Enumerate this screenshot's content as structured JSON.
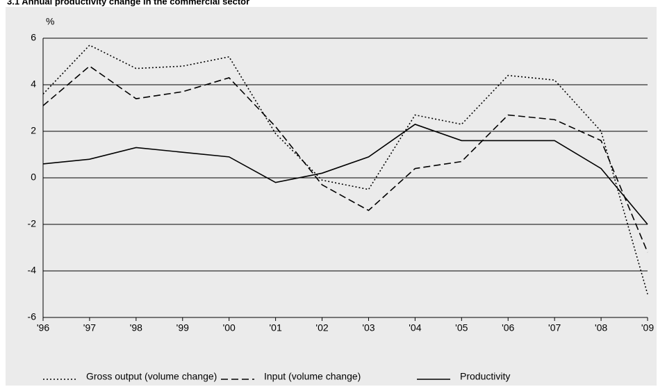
{
  "chart_data": {
    "type": "line",
    "title": "3.1 Annual productivity change in the commercial sector",
    "y_label": "%",
    "categories": [
      "'96",
      "'97",
      "'98",
      "'99",
      "'00",
      "'01",
      "'02",
      "'03",
      "'04",
      "'05",
      "'06",
      "'07",
      "'08",
      "'09"
    ],
    "series": [
      {
        "name": "Gross output (volume change)",
        "color": "#000000",
        "dash": "dotted",
        "values": [
          3.6,
          5.7,
          4.7,
          4.8,
          5.2,
          1.9,
          -0.1,
          -0.5,
          2.7,
          2.3,
          4.4,
          4.2,
          2.0,
          -5.0
        ]
      },
      {
        "name": "Input (volume change)",
        "color": "#000000",
        "dash": "dashed",
        "values": [
          3.1,
          4.8,
          3.4,
          3.7,
          4.3,
          2.2,
          -0.3,
          -1.4,
          0.4,
          0.7,
          2.7,
          2.5,
          1.6,
          -3.2
        ]
      },
      {
        "name": "Productivity",
        "color": "#000000",
        "dash": "solid",
        "values": [
          0.6,
          0.8,
          1.3,
          1.1,
          0.9,
          -0.2,
          0.2,
          0.9,
          2.3,
          1.6,
          1.6,
          1.6,
          0.4,
          -2.0
        ]
      }
    ],
    "ylim": [
      -6,
      6
    ],
    "yticks": [
      -6,
      -4,
      -2,
      0,
      2,
      4,
      6
    ],
    "grid": true,
    "legend": "bottom"
  }
}
